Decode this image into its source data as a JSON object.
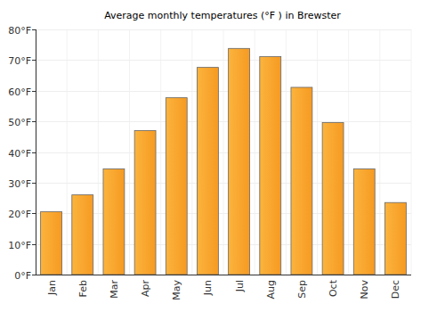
{
  "chart_data": {
    "type": "bar",
    "title": "Average monthly temperatures (°F ) in Brewster",
    "categories": [
      "Jan",
      "Feb",
      "Mar",
      "Apr",
      "May",
      "Jun",
      "Jul",
      "Aug",
      "Sep",
      "Oct",
      "Nov",
      "Dec"
    ],
    "values": [
      20.5,
      26,
      34.5,
      47,
      57.7,
      67.6,
      73.8,
      71.1,
      61.1,
      49.6,
      34.5,
      23.5
    ],
    "color": "#f9a52a",
    "ylim": [
      0,
      80
    ],
    "yticks": [
      {
        "value": 0,
        "label": "0°F"
      },
      {
        "value": 10,
        "label": "10°F"
      },
      {
        "value": 20,
        "label": "20°F"
      },
      {
        "value": 30,
        "label": "30°F"
      },
      {
        "value": 40,
        "label": "40°F"
      },
      {
        "value": 50,
        "label": "50°F"
      },
      {
        "value": 60,
        "label": "60°F"
      },
      {
        "value": 70,
        "label": "70°F"
      },
      {
        "value": 80,
        "label": "80°F"
      }
    ],
    "grid": true
  }
}
